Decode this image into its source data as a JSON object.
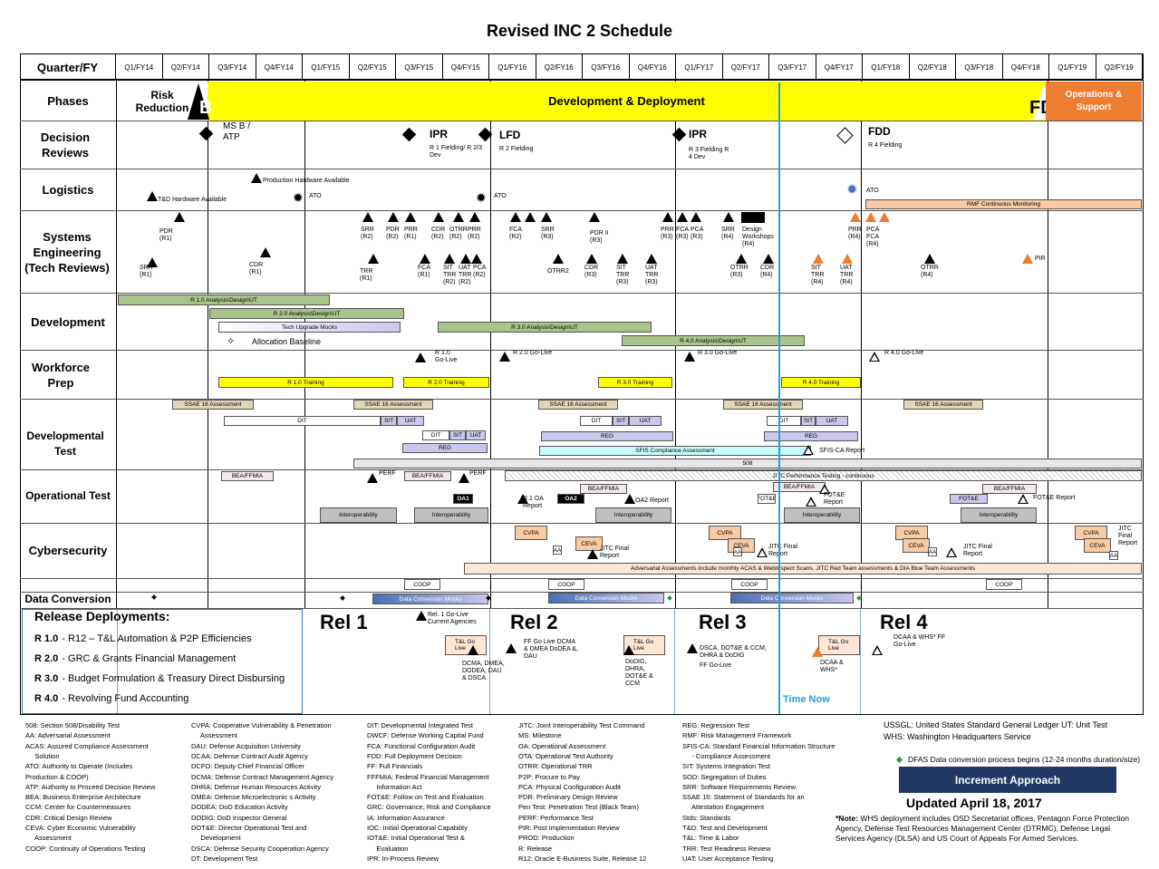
{
  "title": "Revised INC 2 Schedule",
  "header_label": "Quarter/FY",
  "quarters": [
    "Q1/FY14",
    "Q2/FY14",
    "Q3/FY14",
    "Q4/FY14",
    "Q1/FY15",
    "Q2/FY15",
    "Q3/FY15",
    "Q4/FY15",
    "Q1/FY16",
    "Q2/FY16",
    "Q3/FY16",
    "Q4/FY16",
    "Q1/FY17",
    "Q2/FY17",
    "Q3/FY17",
    "Q4/FY17",
    "Q1/FY18",
    "Q2/FY18",
    "Q3/FY18",
    "Q4/FY18",
    "Q1/FY19",
    "Q2/FY19"
  ],
  "rows": {
    "phases": "Phases",
    "decision": "Decision Reviews",
    "logistics": "Logistics",
    "systems": "Systems Engineering (Tech Reviews)",
    "development": "Development",
    "workforce": "Workforce Prep",
    "devtest": "Developmental Test",
    "optest": "Operational Test",
    "cyber": "Cybersecurity",
    "dataconv": "Data Conversion"
  },
  "phases": {
    "risk": "Risk Reduction",
    "dev": "Development & Deployment",
    "ops": "Operations & Support",
    "b": "B",
    "fd": "FD"
  },
  "decision": {
    "msb": "MS B / ATP",
    "ipr1": "IPR",
    "ipr1_sub": "R 1 Fielding/ R 2/3 Dev",
    "lfd": "LFD",
    "lfd_sub": "R 2 Fielding",
    "ipr2": "IPR",
    "ipr2_sub": "R 3 Fielding R 4 Dev",
    "fdd": "FDD",
    "fdd_sub": "R 4 Fielding"
  },
  "logistics": {
    "td": "T&D Hardware Available",
    "prod": "Production Hardware Available",
    "ato": "ATO",
    "rmf": "RMF Continuous Monitoring"
  },
  "systems": {
    "labels": [
      "SRR (R1)",
      "PDR (R1)",
      "CDR (R1)",
      "SRR (R2)",
      "PDR (R2)",
      "PRR (R1)",
      "TRR (R1)",
      "CDR (R2)",
      "OTRR (R2)",
      "PRR (R2)",
      "FCA (R1)",
      "SIT TRR (R2)",
      "UAT TRR (R2)",
      "PCA (R2)",
      "PCA (R2)",
      "FCA (R2)",
      "SRR (R3)",
      "OTRR2",
      "PDR II (R3)",
      "CDR (R3)",
      "SIT TRR (R3)",
      "UAT TRR (R3)",
      "PRR (R3)",
      "FCA (R3)",
      "PCA (R3)",
      "SRR (R4)",
      "Design Workshops (R4)",
      "OTRR (R3)",
      "CDR (R4)",
      "SIT TRR (R4)",
      "UAT TRR (R4)",
      "PRR (R4)",
      "PCA FCA (R4)",
      "OTRR (R4)",
      "PIR"
    ]
  },
  "development": {
    "r1": "R 1.0 Analysis\\Design\\UT",
    "r2": "R 2.0 Analysis\\Design\\UT",
    "tech": "Tech Upgrade Mocks",
    "r3": "R 3.0 Analysis\\Design\\UT",
    "r4": "R 4.0 Analysis\\Design\\UT",
    "alloc": "Allocation Baseline"
  },
  "workforce": {
    "r1golive": "R 1.0 Go-Live",
    "r2golive": "R 2.0 Go-Live",
    "r3golive": "R 3.0 Go-Live",
    "r4golive": "R 4.0 Go-Live",
    "t1": "R 1.0 Training",
    "t2": "R 2.0 Training",
    "t3": "R 3.0 Training",
    "t4": "R 4.0 Training"
  },
  "devtest": {
    "ssae": "SSAE 16 Assessment",
    "dit": "DIT",
    "sit": "SIT",
    "uat": "UAT",
    "reg": "REG",
    "sfis": "SFIS Compliance Assessment",
    "sfisca": "SFIS-CA Report",
    "s508": "508"
  },
  "optest": {
    "bea": "BEA/FFMIA",
    "perf": "PERF",
    "jitc": "JITC Performance Testing - continuous",
    "oa1": "OA1",
    "oa2": "OA2",
    "r1oa": "R.1 OA Report",
    "oa2rep": "OA2 Report",
    "fote": "FOT&E",
    "foterep": "FOT&E Report",
    "interop": "Interoperability"
  },
  "cyber": {
    "cvpa": "CVPA",
    "ceva": "CEVA",
    "aa": "AA",
    "jitcfinal": "JITC Final Report",
    "adv": "Adversarial Assessments include monthly ACAS & WebInspect Scans, JITC Red Team assessments & DIA Blue Team Assessments"
  },
  "dataconv": {
    "coop": "COOP",
    "mocks": "Data Conversion Mocks"
  },
  "release": {
    "heading": "Release Deployments:",
    "items": [
      {
        "k": "R 1.0",
        "v": "- R12 – T&L Automation & P2P Efficiencies"
      },
      {
        "k": "R 2.0",
        "v": "- GRC & Grants Financial Management"
      },
      {
        "k": "R 3.0",
        "v": "- Budget Formulation & Treasury Direct Disbursing"
      },
      {
        "k": "R 4.0",
        "v": "- Revolving Fund Accounting"
      }
    ],
    "rel1": "Rel 1",
    "rel2": "Rel 2",
    "rel3": "Rel 3",
    "rel4": "Rel 4",
    "r1go": "Rel. 1 Go-Live Current Agencies",
    "tl": "T&L Go Live",
    "dcma1": "DCMA, DMEA, DODEA, DAU & DSCA",
    "ff": "FF Go Live DCMA & DMEA DoDEA &, DAU",
    "dodig": "DoDIG, DHRA, DOT&E & CCM",
    "dsca": "DSCA, DOT&E & CCM, DHRA & DoDIG",
    "ffgo": "FF Go-Live",
    "dcaa": "DCAA & WHS*",
    "dcaawhs": "DCAA & WHS* FF Go-Live",
    "timenow": "Time Now"
  },
  "legend_cols": [
    [
      "508: Section 508/Disability Test",
      "AA: Adversarial Assessment",
      "ACAS: Assured Compliance Assessment",
      "     Solution",
      "ATO: Authority to Operate (Includes",
      "Production & COOP)",
      "ATP: Authority to Proceed Decision Review",
      "BEA: Business Enterprise Architecture",
      "CCM: Center for Countermeasures",
      "CDR: Critical Design Review",
      "CEVA: Cyber Economic Vulnerability",
      "     Assessment",
      "COOP: Continuity of Operations Testing"
    ],
    [
      "CVPA: Cooperative Vulnerability & Penetration",
      "     Assessment",
      "DAU: Defense Acquisition University",
      "DCAA: Defense Contract Audit Agency",
      "DCFO: Deputy Chief Financial Officer",
      "DCMA: Defense Contract Management Agency",
      "DHRA: Defense Human Resources Activity",
      "DMEA: Defense Microelectronic s Activity",
      "DODEA: DoD Education Activity",
      "DODIG: DoD Inspector General",
      "DOT&E: Director Operational Test and",
      "     Development",
      "DSCA: Defense Security Cooperation Agency",
      "DT: Development Test"
    ],
    [
      "DIT: Developmental Integrated Test",
      "DWCF: Defense Working Capital Fund",
      "FCA: Functional Configuration Audit",
      "FDD: Full Deployment Decision",
      "FF: Full Financials",
      "FFFMIA: Federal Financial Management",
      "     Information Act",
      "FOT&E: Follow on Test and Evaluation",
      "GRC: Governance, Risk and Compliance",
      "IA: Information Assurance",
      "IOC: Initial Operational Capability",
      "IOT&E: Initial Operational Test &",
      "     Evaluation",
      "IPR: In-Process Review"
    ],
    [
      "JITC: Joint Interoperability Test Command",
      "MS: Milestone",
      "OA: Operational Assessment",
      "OTA: Operational Test Authority",
      "OTRR: Operational TRR",
      "P2P: Procure to Pay",
      "PCA: Physical Configuration Audit",
      "PDR: Preliminary Design Review",
      "Pen Test: Penetration Test (Black Team)",
      "PERF: Performance Test",
      "PIR: Post Implementation Review",
      "PROD: Production",
      "R: Release",
      "R12: Oracle E-Business Suite, Release 12"
    ],
    [
      "REG: Regression Test",
      "RMF: Risk Management Framework",
      "SFIS-CA: Standard Financial Information Structure",
      "     - Compliance Assessment",
      "SIT: Systems Integration Test",
      "SOD: Segregation of Duties",
      "SRR: Software Requirements Review",
      "SSAE 16: Statement of Standards for an",
      "     Attestation Engagement",
      "Stds: Standards",
      "T&D: Test and Development",
      "T&L: Time & Labor",
      "TRR: Test Readiness Review",
      "UAT: User Acceptance Testing"
    ]
  ],
  "legend_right": {
    "ussgl": "USSGL: United States Standard General Ledger UT: Unit Test",
    "whs": "WHS: Washington Headquarters Service",
    "dfas": "DFAS Data conversion process begins (12-24 months duration/size)",
    "increment": "Increment Approach",
    "updated": "Updated April 18, 2017",
    "note_label": "*Note:",
    "note": " WHS deployment includes OSD Secretariat offices, Pentagon Force Protection Agency, Defense Test Resources Management Center (DTRMC), Defense Legal Services Agency (DLSA) and US Court of Appeals For Armed Services."
  },
  "colors": {
    "yellow": "#ffff00",
    "orange": "#ed7d31",
    "green_bar": "#a9c48a",
    "purple_bar": "#c9c7ec",
    "gray_box": "#bfbfbf",
    "tan": "#e0d5b5",
    "cyan": "#c8fbfb",
    "peach": "#f8cba5",
    "timenow": "#2a9fd6",
    "increment_bg": "#203864"
  }
}
